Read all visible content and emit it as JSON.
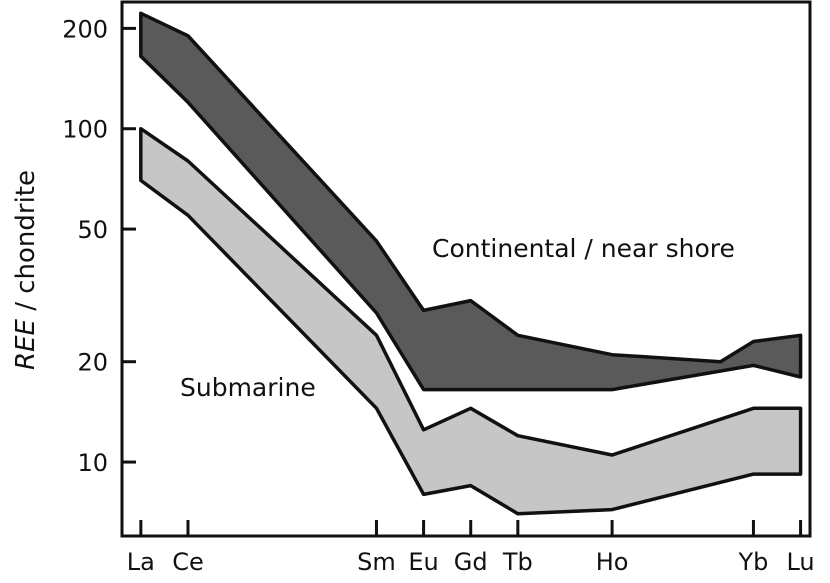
{
  "chart_data": {
    "type": "area",
    "ylabel_italic": "REE",
    "ylabel_rest": " / chondrite",
    "y_scale": "log",
    "ylim": [
      6,
      240
    ],
    "y_ticks": [
      10,
      20,
      50,
      100,
      200
    ],
    "x_categories": [
      "La",
      "Ce",
      "Sm",
      "Eu",
      "Gd",
      "Tb",
      "Ho",
      "Yb",
      "Lu"
    ],
    "x_positions": [
      57,
      58,
      62,
      63,
      64,
      65,
      67,
      70,
      71
    ],
    "x_range": [
      56.6,
      71.2
    ],
    "series": [
      {
        "name": "Continental / near shore",
        "color": "#5a5a5a",
        "upper": [
          [
            57,
            222
          ],
          [
            58,
            190
          ],
          [
            62,
            46
          ],
          [
            63,
            28.5
          ],
          [
            64,
            30.5
          ],
          [
            65,
            24
          ],
          [
            67,
            21
          ],
          [
            69.3,
            20
          ],
          [
            70,
            23
          ],
          [
            71,
            24
          ]
        ],
        "lower": [
          [
            57,
            165
          ],
          [
            58,
            120
          ],
          [
            62,
            28
          ],
          [
            63,
            16.5
          ],
          [
            64,
            16.5
          ],
          [
            65,
            16.5
          ],
          [
            67,
            16.5
          ],
          [
            70,
            19.5
          ],
          [
            71,
            18
          ]
        ]
      },
      {
        "name": "Submarine",
        "color": "#c6c6c6",
        "upper": [
          [
            57,
            100
          ],
          [
            58,
            80
          ],
          [
            62,
            24
          ],
          [
            63,
            12.5
          ],
          [
            64,
            14.5
          ],
          [
            65,
            12
          ],
          [
            67,
            10.5
          ],
          [
            70,
            14.5
          ],
          [
            71,
            14.5
          ]
        ],
        "lower": [
          [
            57,
            70
          ],
          [
            58,
            55
          ],
          [
            62,
            14.5
          ],
          [
            63,
            8
          ],
          [
            64,
            8.5
          ],
          [
            65,
            7
          ],
          [
            67,
            7.2
          ],
          [
            70,
            9.2
          ],
          [
            71,
            9.2
          ]
        ]
      }
    ],
    "annotations": [
      "Continental / near shore",
      "Submarine"
    ]
  }
}
